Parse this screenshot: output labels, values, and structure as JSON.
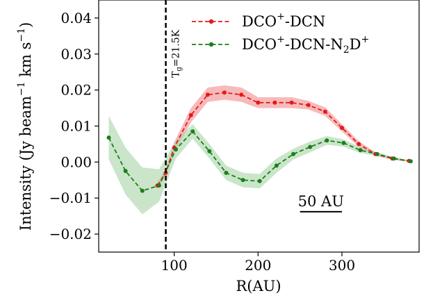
{
  "chart_data": {
    "type": "line",
    "xlabel": "R(AU)",
    "ylabel_main": "Intensity (Jy beam",
    "ylabel_sup1": "−1",
    "ylabel_mid": " km s",
    "ylabel_sup2": "−1",
    "ylabel_end": ")",
    "xlim": [
      10,
      392
    ],
    "ylim": [
      -0.025,
      0.045
    ],
    "xticks": [
      100,
      200,
      300
    ],
    "xtick_labels": [
      "100",
      "200",
      "300"
    ],
    "yticks": [
      -0.02,
      -0.01,
      0.0,
      0.01,
      0.02,
      0.03,
      0.04
    ],
    "ytick_labels": [
      "−0.02",
      "−0.01",
      "0.00",
      "0.01",
      "0.02",
      "0.03",
      "0.04"
    ],
    "legend_position": "top-right",
    "series": [
      {
        "name": "DCO+-DCN",
        "legend_base": "DCO",
        "legend_sup": "+",
        "legend_rest": "-DCN",
        "color": "#e41a1c",
        "band_color": "#f4a3a3",
        "x": [
          80,
          90,
          100,
          120,
          140,
          160,
          180,
          200,
          220,
          240,
          260,
          280,
          300,
          320,
          340,
          360,
          380
        ],
        "y": [
          -0.0065,
          -0.003,
          0.004,
          0.013,
          0.0187,
          0.0193,
          0.0187,
          0.0165,
          0.0165,
          0.0165,
          0.0158,
          0.014,
          0.0095,
          0.005,
          0.0022,
          0.001,
          0.0003
        ],
        "band_halfwidth": [
          0.001,
          0.001,
          0.0015,
          0.002,
          0.002,
          0.002,
          0.002,
          0.0015,
          0.0015,
          0.0015,
          0.0012,
          0.0012,
          0.001,
          0.0008,
          0.0005,
          0.0003,
          0.0002
        ]
      },
      {
        "name": "DCO+-DCN-N2D+",
        "legend_base": "DCO",
        "legend_sup": "+",
        "legend_mid": "-DCN-N",
        "legend_sub": "2",
        "legend_mid2": "D",
        "legend_sup2": "+",
        "color": "#1a7f1a",
        "band_color": "#a6d3a6",
        "x": [
          22,
          42,
          62,
          82,
          102,
          122,
          142,
          162,
          182,
          202,
          222,
          242,
          262,
          282,
          302,
          322,
          342,
          362,
          382
        ],
        "y": [
          0.0068,
          -0.0025,
          -0.008,
          -0.0065,
          0.0035,
          0.0085,
          0.003,
          -0.003,
          -0.005,
          -0.0053,
          -0.001,
          0.0022,
          0.0042,
          0.006,
          0.0053,
          0.0033,
          0.0022,
          0.001,
          0.0002
        ],
        "band_halfwidth": [
          0.006,
          0.0065,
          0.0065,
          0.0045,
          0.0025,
          0.002,
          0.002,
          0.002,
          0.002,
          0.002,
          0.002,
          0.0015,
          0.0015,
          0.0012,
          0.001,
          0.0008,
          0.0005,
          0.0004,
          0.0002
        ]
      }
    ],
    "vline": {
      "x": 90,
      "label_base": "T",
      "label_sub": "g",
      "label_rest": "=21.5K"
    },
    "scalebar": {
      "x_start": 250,
      "x_end": 300,
      "y": -0.0138,
      "label": "50 AU"
    }
  }
}
